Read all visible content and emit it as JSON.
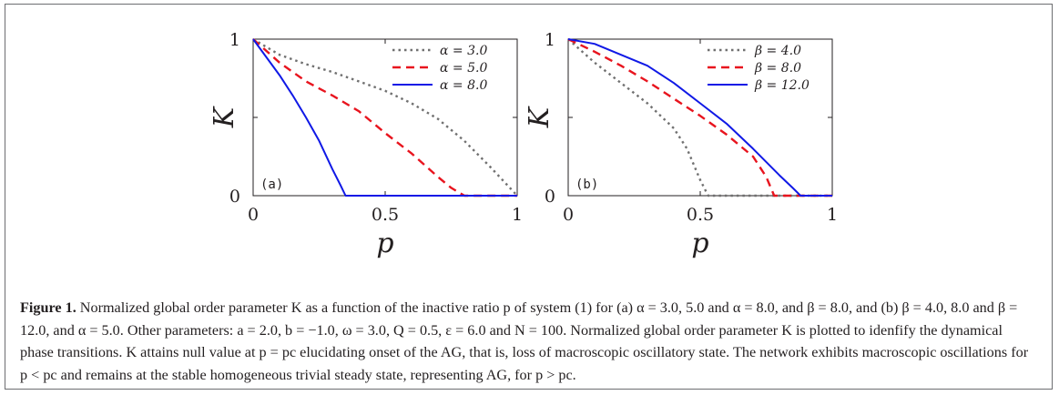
{
  "chart_data": [
    {
      "type": "line",
      "panel_label": "(a)",
      "xlabel": "p",
      "ylabel": "K",
      "xlim": [
        0,
        1
      ],
      "ylim": [
        0,
        1
      ],
      "xticks": [
        "0",
        "0.5",
        "1"
      ],
      "yticks": [
        "0",
        "1"
      ],
      "legend_position": "top-right",
      "series": [
        {
          "name": "α = 3.0",
          "style": "dotted",
          "color": "#707070",
          "x": [
            0,
            0.1,
            0.2,
            0.3,
            0.4,
            0.5,
            0.6,
            0.7,
            0.8,
            0.9,
            1.0
          ],
          "y": [
            1.0,
            0.9,
            0.84,
            0.79,
            0.73,
            0.67,
            0.59,
            0.49,
            0.35,
            0.18,
            0.0
          ]
        },
        {
          "name": "α = 5.0",
          "style": "dashed",
          "color": "#e8141e",
          "x": [
            0,
            0.1,
            0.2,
            0.3,
            0.4,
            0.5,
            0.6,
            0.7,
            0.75,
            0.8,
            0.9,
            1.0
          ],
          "y": [
            1.0,
            0.85,
            0.73,
            0.64,
            0.54,
            0.4,
            0.27,
            0.12,
            0.05,
            0.0,
            0.0,
            0.0
          ]
        },
        {
          "name": "α = 8.0",
          "style": "solid",
          "color": "#1019e6",
          "x": [
            0,
            0.1,
            0.15,
            0.2,
            0.25,
            0.3,
            0.33,
            0.35,
            0.4,
            0.6,
            0.8,
            1.0
          ],
          "y": [
            1.0,
            0.77,
            0.64,
            0.5,
            0.35,
            0.17,
            0.07,
            0.0,
            0.0,
            0.0,
            0.0,
            0.0
          ]
        }
      ]
    },
    {
      "type": "line",
      "panel_label": "(b)",
      "xlabel": "p",
      "ylabel": "K",
      "xlim": [
        0,
        1
      ],
      "ylim": [
        0,
        1
      ],
      "xticks": [
        "0",
        "0.5",
        "1"
      ],
      "yticks": [
        "0",
        "1"
      ],
      "legend_position": "top-right",
      "series": [
        {
          "name": "β = 4.0",
          "style": "dotted",
          "color": "#707070",
          "x": [
            0,
            0.1,
            0.2,
            0.3,
            0.4,
            0.45,
            0.5,
            0.53,
            0.6,
            0.8,
            1.0
          ],
          "y": [
            1.0,
            0.85,
            0.72,
            0.59,
            0.43,
            0.3,
            0.1,
            0.0,
            0.0,
            0.0,
            0.0
          ]
        },
        {
          "name": "β = 8.0",
          "style": "dashed",
          "color": "#e8141e",
          "x": [
            0,
            0.1,
            0.2,
            0.3,
            0.4,
            0.5,
            0.6,
            0.7,
            0.75,
            0.78,
            0.9,
            1.0
          ],
          "y": [
            1.0,
            0.92,
            0.83,
            0.73,
            0.62,
            0.51,
            0.39,
            0.25,
            0.12,
            0.0,
            0.0,
            0.0
          ]
        },
        {
          "name": "β = 12.0",
          "style": "solid",
          "color": "#1019e6",
          "x": [
            0,
            0.1,
            0.2,
            0.3,
            0.4,
            0.5,
            0.6,
            0.7,
            0.8,
            0.85,
            0.88,
            1.0
          ],
          "y": [
            1.0,
            0.97,
            0.9,
            0.83,
            0.72,
            0.59,
            0.46,
            0.3,
            0.13,
            0.05,
            0.0,
            0.0
          ]
        }
      ]
    }
  ],
  "caption": {
    "label": "Figure 1.",
    "text": "Normalized global order parameter K as a function of the inactive ratio p of system (1) for (a) α = 3.0, 5.0 and α = 8.0, and β = 8.0, and (b) β = 4.0, 8.0 and β = 12.0, and α = 5.0. Other parameters: a = 2.0, b = −1.0, ω = 3.0, Q = 0.5, ε = 6.0 and N = 100. Normalized global order parameter K is plotted to idenfify the dynamical phase transitions. K attains null value at p = pc elucidating onset of the AG, that is, loss of macroscopic oscillatory state. The network exhibits macroscopic oscillations for p < pc and remains at the stable homogeneous trivial steady state, representing AG, for p > pc."
  }
}
